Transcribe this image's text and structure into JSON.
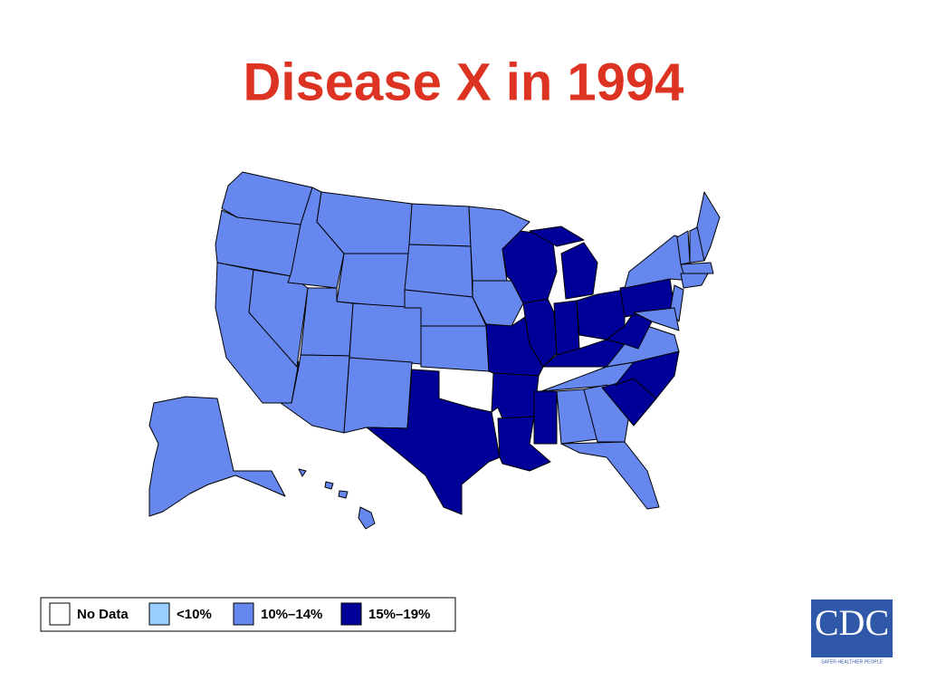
{
  "title": "Disease X in 1994",
  "legend": [
    {
      "label": "No Data",
      "color": "#ffffff"
    },
    {
      "label": "<10%",
      "color": "#99ccff"
    },
    {
      "label": "10%–14%",
      "color": "#6688ee"
    },
    {
      "label": "15%–19%",
      "color": "#000099"
    }
  ],
  "region_classes": [
    2,
    2,
    2,
    2,
    2,
    2,
    2,
    2,
    2,
    2,
    2,
    2,
    2,
    2,
    2,
    3,
    2,
    2,
    3,
    3,
    3,
    3,
    3,
    3,
    3,
    3,
    3,
    2,
    3,
    3,
    2,
    2,
    3,
    3,
    2,
    3,
    3,
    2,
    2,
    2,
    2,
    2,
    2,
    2,
    2,
    2,
    2,
    2,
    2,
    2,
    2
  ],
  "logo": {
    "name": "CDC",
    "tagline": "SAFER·HEALTHIER·PEOPLE"
  }
}
